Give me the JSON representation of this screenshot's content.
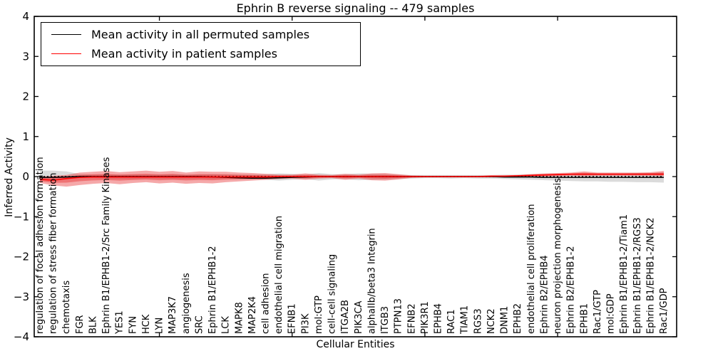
{
  "title": "Ephrin B reverse signaling -- 479 samples",
  "xlabel": "Cellular Entities",
  "ylabel": "Inferred Activity",
  "legend": {
    "items": [
      {
        "label": "Mean activity in all permuted samples",
        "color": "#000000"
      },
      {
        "label": "Mean activity in patient samples",
        "color": "#ff0000"
      }
    ]
  },
  "yaxis": {
    "tick_values": [
      -4,
      -3,
      -2,
      -1,
      0,
      1,
      2,
      3,
      4
    ],
    "tick_labels": [
      "−4",
      "−3",
      "−2",
      "−1",
      "0",
      "1",
      "2",
      "3",
      "4"
    ]
  },
  "colors": {
    "permuted_line": "#000000",
    "patient_line": "#ff0000",
    "permuted_band": "rgba(0,0,0,0.14)",
    "patient_band": "rgba(228,26,28,0.38)",
    "zero_line": "#000000",
    "axis": "#000000"
  },
  "chart_data": {
    "type": "area",
    "title": "Ephrin B reverse signaling -- 479 samples",
    "xlabel": "Cellular Entities",
    "ylabel": "Inferred Activity",
    "ylim": [
      -4,
      4
    ],
    "grid": false,
    "legend_position": "upper left",
    "zero_reference_line": 0,
    "x_major_tick_indices": [
      9,
      19,
      29,
      39
    ],
    "categories": [
      "regulation of focal adhesion formation",
      "regulation of stress fiber formation",
      "chemotaxis",
      "FGR",
      "BLK",
      "Ephrin B1/EPHB1-2/Src Family Kinases",
      "YES1",
      "FYN",
      "HCK",
      "LYN",
      "MAP3K7",
      "angiogenesis",
      "SRC",
      "Ephrin B1/EPHB1-2",
      "LCK",
      "MAPK8",
      "MAP2K4",
      "cell adhesion",
      "endothelial cell migration",
      "EFNB1",
      "PI3K",
      "mol:GTP",
      "cell-cell signaling",
      "ITGA2B",
      "PIK3CA",
      "alphaIIb/beta3 Integrin",
      "ITGB3",
      "PTPN13",
      "EFNB2",
      "PIK3R1",
      "EPHB4",
      "RAC1",
      "TIAM1",
      "RGS3",
      "NCK2",
      "DNM1",
      "EPHB2",
      "endothelial cell proliferation",
      "Ephrin B2/EPHB4",
      "neuron projection morphogenesis",
      "Ephrin B2/EPHB1-2",
      "EPHB1",
      "Rac1/GTP",
      "mol:GDP",
      "Ephrin B1/EPHB1-2/Tiam1",
      "Ephrin B1/EPHB1-2/RGS3",
      "Ephrin B1/EPHB1-2/NCK2",
      "Rac1/GDP"
    ],
    "series": [
      {
        "name": "Mean activity in all permuted samples",
        "role": "line",
        "color": "#000000",
        "values": [
          -0.02,
          -0.02,
          -0.01,
          0,
          0,
          0,
          0,
          0,
          0,
          0,
          0,
          0,
          0,
          -0.01,
          -0.02,
          -0.03,
          -0.04,
          -0.04,
          -0.03,
          -0.02,
          -0.01,
          0,
          0,
          0,
          0,
          0,
          0,
          0,
          0,
          0,
          0,
          0,
          0,
          0,
          0,
          -0.01,
          -0.01,
          -0.01,
          -0.02,
          -0.02,
          -0.02,
          -0.02,
          -0.02,
          -0.02,
          -0.02,
          -0.02,
          -0.02,
          -0.02
        ]
      },
      {
        "name": "Mean activity in patient samples",
        "role": "line",
        "color": "#ff0000",
        "values": [
          -0.07,
          -0.09,
          -0.05,
          -0.02,
          -0.01,
          -0.01,
          -0.01,
          -0.01,
          -0.01,
          -0.01,
          -0.01,
          -0.01,
          -0.01,
          -0.01,
          -0.01,
          -0.01,
          -0.01,
          -0.01,
          0,
          0,
          0,
          0,
          0,
          0,
          0,
          0,
          0,
          0,
          0,
          0,
          0,
          0,
          0,
          0,
          0.01,
          0.01,
          0.02,
          0.03,
          0.04,
          0.05,
          0.06,
          0.06,
          0.06,
          0.06,
          0.06,
          0.06,
          0.06,
          0.06
        ]
      },
      {
        "name": "Permuted samples activity range",
        "role": "band",
        "color": "rgba(0,0,0,0.14)",
        "upper": [
          0.15,
          0.15,
          0.13,
          0.06,
          0.05,
          0.05,
          0.05,
          0.05,
          0.05,
          0.05,
          0.06,
          0.05,
          0.05,
          0.06,
          0.05,
          0.05,
          0.05,
          0.06,
          0.08,
          0.07,
          0.05,
          0.09,
          0.06,
          0.06,
          0.08,
          0.07,
          0.06,
          0.05,
          0.04,
          0.04,
          0.04,
          0.04,
          0.04,
          0.04,
          0.04,
          0.05,
          0.05,
          0.06,
          0.06,
          0.07,
          0.07,
          0.08,
          0.08,
          0.08,
          0.08,
          0.09,
          0.09,
          0.1
        ],
        "lower": [
          -0.05,
          -0.05,
          -0.04,
          -0.04,
          -0.04,
          -0.05,
          -0.05,
          -0.06,
          -0.05,
          -0.05,
          -0.06,
          -0.05,
          -0.05,
          -0.06,
          -0.05,
          -0.06,
          -0.07,
          -0.08,
          -0.1,
          -0.08,
          -0.06,
          -0.1,
          -0.07,
          -0.06,
          -0.09,
          -0.08,
          -0.07,
          -0.06,
          -0.05,
          -0.04,
          -0.04,
          -0.05,
          -0.04,
          -0.05,
          -0.05,
          -0.06,
          -0.07,
          -0.08,
          -0.09,
          -0.1,
          -0.11,
          -0.12,
          -0.12,
          -0.13,
          -0.13,
          -0.14,
          -0.14,
          -0.15
        ]
      },
      {
        "name": "Patient samples activity range",
        "role": "band",
        "color": "rgba(228,26,28,0.38)",
        "has_inner_band": true,
        "upper": [
          0.0,
          0.02,
          0.04,
          0.1,
          0.12,
          0.14,
          0.11,
          0.13,
          0.15,
          0.12,
          0.14,
          0.1,
          0.13,
          0.12,
          0.12,
          0.1,
          0.09,
          0.07,
          0.05,
          0.05,
          0.08,
          0.05,
          0.04,
          0.07,
          0.05,
          0.08,
          0.09,
          0.06,
          0.03,
          0.02,
          0.02,
          0.02,
          0.02,
          0.02,
          0.03,
          0.03,
          0.04,
          0.06,
          0.08,
          0.09,
          0.1,
          0.13,
          0.1,
          0.1,
          0.1,
          0.1,
          0.11,
          0.14
        ],
        "lower": [
          -0.16,
          -0.22,
          -0.25,
          -0.21,
          -0.18,
          -0.16,
          -0.19,
          -0.16,
          -0.14,
          -0.17,
          -0.15,
          -0.18,
          -0.16,
          -0.17,
          -0.14,
          -0.12,
          -0.1,
          -0.08,
          -0.06,
          -0.05,
          -0.08,
          -0.05,
          -0.04,
          -0.08,
          -0.05,
          -0.09,
          -0.1,
          -0.07,
          -0.03,
          -0.02,
          -0.02,
          -0.02,
          -0.02,
          -0.02,
          -0.02,
          -0.02,
          -0.01,
          0.0,
          0.0,
          0.01,
          0.02,
          0.01,
          0.02,
          0.02,
          0.02,
          0.02,
          0.02,
          0.01
        ]
      }
    ]
  }
}
